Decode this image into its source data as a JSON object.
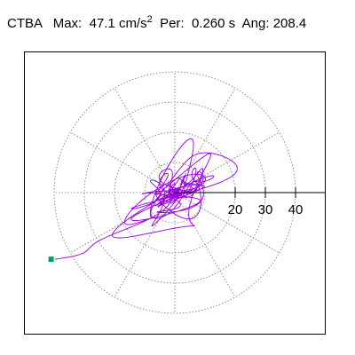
{
  "header": {
    "station": "CTBA",
    "max_label": "Max:",
    "max_value": "47.1",
    "max_unit": "cm/s",
    "max_unit_exp": "2",
    "per_label": "Per:",
    "per_value": "0.260",
    "per_unit": "s",
    "ang_label": "Ang:",
    "ang_value": "208.4"
  },
  "chart_data": {
    "type": "polar",
    "title": "",
    "radial_ticks": [
      "20",
      "30",
      "40"
    ],
    "radial_tick_values": [
      20,
      30,
      40
    ],
    "rlim": [
      0,
      50
    ],
    "grid": true,
    "grid_rings": [
      10,
      20,
      30,
      40
    ],
    "grid_angle_step_deg": 30,
    "max_direction_deg": 208.4,
    "max_amplitude": 47.1,
    "trace_color": "#9900dd",
    "marker_color": "#009e73",
    "marker_point": {
      "x": -41.0,
      "y": -22.1
    }
  }
}
